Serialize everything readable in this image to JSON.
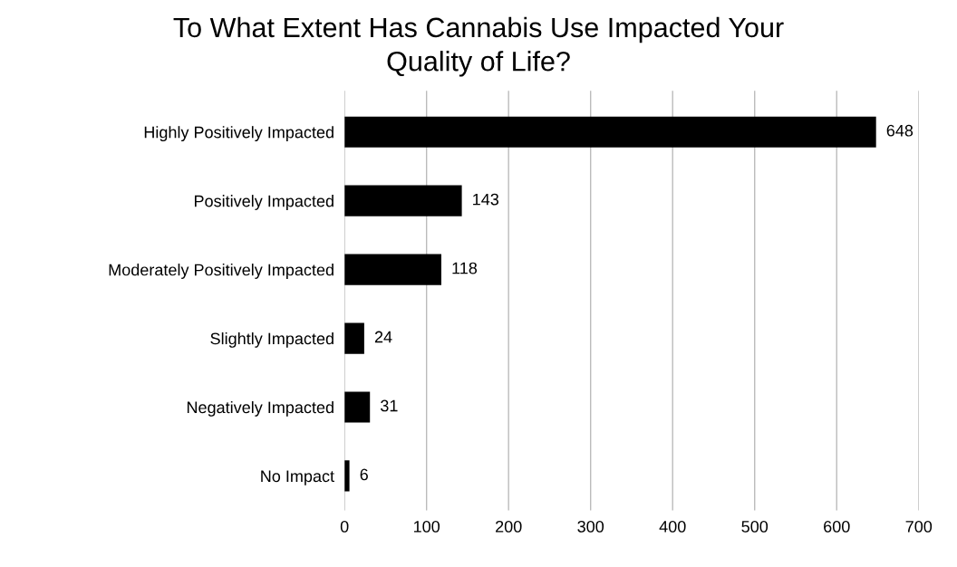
{
  "chart_data": {
    "type": "bar",
    "orientation": "horizontal",
    "title": "To What Extent Has Cannabis Use Impacted Your\nQuality of Life?",
    "categories": [
      "Highly Positively Impacted",
      "Positively Impacted",
      "Moderately Positively Impacted",
      "Slightly Impacted",
      "Negatively Impacted",
      "No Impact"
    ],
    "values": [
      648,
      143,
      118,
      24,
      31,
      6
    ],
    "color": "#000000",
    "xlim": [
      0,
      700
    ],
    "xticks": [
      0,
      100,
      200,
      300,
      400,
      500,
      600,
      700
    ],
    "grid": "x",
    "data_labels": true
  }
}
